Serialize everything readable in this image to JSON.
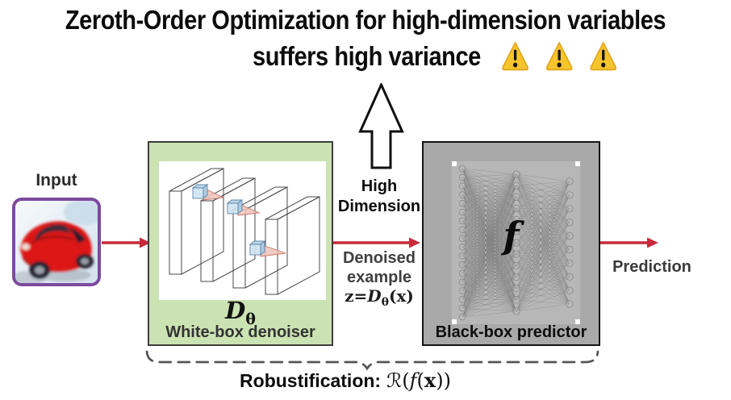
{
  "title": {
    "line1": "Zeroth-Order Optimization for high-dimension variables",
    "line2": "suffers high variance",
    "warning_icon": "warning-triangle",
    "warning_count": 3
  },
  "input": {
    "label": "Input",
    "image": "red-car-photo"
  },
  "denoiser": {
    "symbol_d": "D",
    "symbol_theta": "θ",
    "label": "White-box denoiser",
    "illustration": "cnn-layers",
    "fill_color": "#cbe3b3"
  },
  "predictor": {
    "symbol_f": "f",
    "label": "Black-box predictor",
    "illustration": "fully-connected-network",
    "fill_color": "#a9a9a9"
  },
  "mid": {
    "high1": "High",
    "high2": "Dimension",
    "denoised1": "Denoised",
    "denoised2": "example",
    "formula": {
      "z": "z",
      "eq": "=",
      "d": "D",
      "theta": "θ",
      "open": "(",
      "x": "x",
      "close": ")"
    }
  },
  "output": {
    "label": "Prediction"
  },
  "robustification": {
    "label": "Robustification:",
    "r": "ℛ",
    "open": "(",
    "f": "f",
    "open2": "(",
    "x": "x",
    "close2": ")",
    "close": ")"
  },
  "colors": {
    "arrow_red": "#c9293a",
    "denoiser_green": "#cbe3b3",
    "predictor_gray": "#a9a9a9",
    "input_border_purple": "#7c4a9e",
    "warning_yellow": "#f6c52e",
    "brace_gray": "#555555"
  }
}
